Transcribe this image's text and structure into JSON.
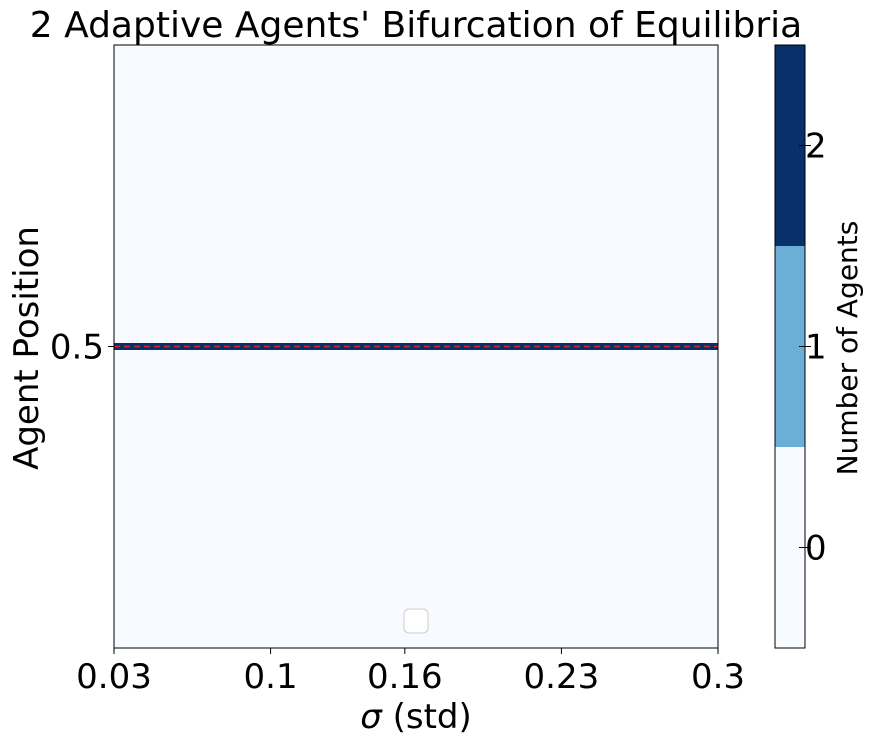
{
  "chart_data": {
    "type": "heatmap",
    "title": "2 Adaptive Agents' Bifurcation of Equilibria",
    "xlabel_symbol": "σ",
    "xlabel_rest": " (std)",
    "ylabel": "Agent Position",
    "x_ticks": [
      "0.03",
      "0.1",
      "0.16",
      "0.23",
      "0.3"
    ],
    "x_tick_values": [
      0.03,
      0.1,
      0.16,
      0.23,
      0.3
    ],
    "xlim": [
      0.03,
      0.3
    ],
    "y_ticks": [
      "0.5"
    ],
    "y_tick_values": [
      0.5
    ],
    "ylim": [
      0,
      1
    ],
    "background_count": 0,
    "bands": [
      {
        "y": 0.5,
        "count": 2,
        "x_from": 0.03,
        "x_to": 0.3
      }
    ],
    "overlay_line": {
      "y": 0.5,
      "style": "dashed",
      "color": "#d62728"
    },
    "legend": {
      "placement": "lower center",
      "entries": []
    },
    "colorbar": {
      "label": "Number of Agents",
      "ticks": [
        "0",
        "1",
        "2"
      ],
      "levels": [
        0,
        1,
        2
      ],
      "colors": [
        "#f7fbff",
        "#6baed6",
        "#08306b"
      ]
    }
  }
}
